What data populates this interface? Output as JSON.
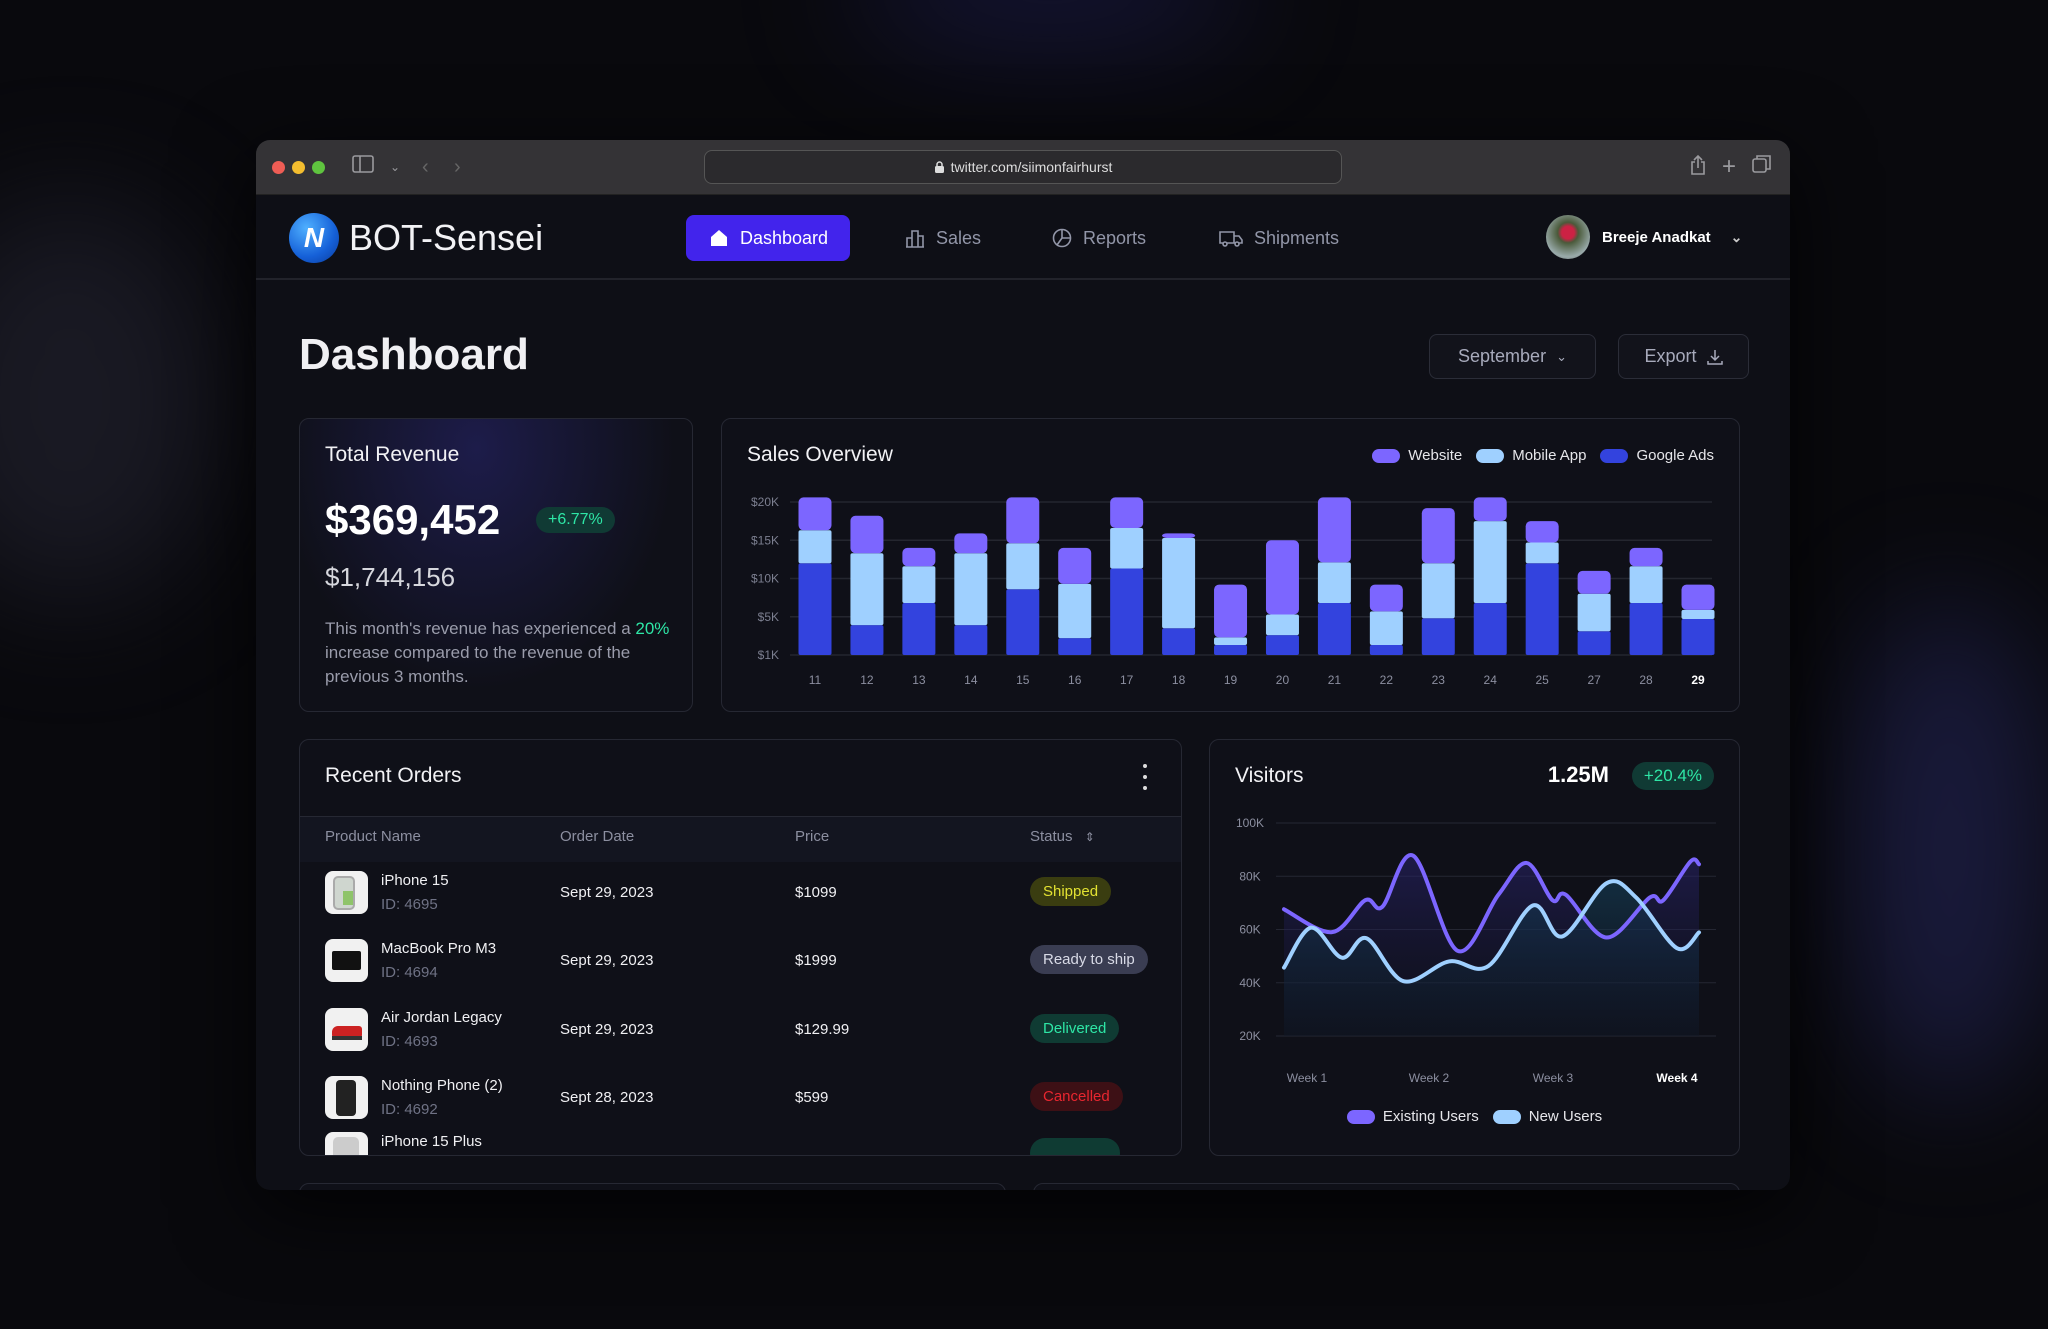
{
  "browser": {
    "url": "twitter.com/siimonfairhurst"
  },
  "app": {
    "brand": "BOT-Sensei",
    "logo_letter": "N"
  },
  "nav": {
    "items": [
      {
        "label": "Dashboard",
        "icon": "home-icon"
      },
      {
        "label": "Sales",
        "icon": "bar-chart-icon"
      },
      {
        "label": "Reports",
        "icon": "pie-chart-icon"
      },
      {
        "label": "Shipments",
        "icon": "truck-icon"
      }
    ],
    "active": "Dashboard"
  },
  "user": {
    "name": "Breeje Anadkat"
  },
  "page": {
    "title": "Dashboard",
    "month_select": "September",
    "export_label": "Export"
  },
  "revenue": {
    "title": "Total Revenue",
    "amount": "$369,452",
    "change": "+6.77%",
    "secondary": "$1,744,156",
    "desc_before": "This month's revenue has experienced a",
    "desc_highlight": "20%",
    "desc_after": " increase compared to the revenue of the previous 3 months."
  },
  "colors": {
    "website": "#7c66ff",
    "mobile_app": "#9fd0ff",
    "google_ads": "#3343de",
    "accent": "#4224ec",
    "positive": "#2ee6a6"
  },
  "chart_data": [
    {
      "type": "bar",
      "stacked": true,
      "title": "Sales Overview",
      "categories": [
        "11",
        "12",
        "13",
        "14",
        "15",
        "16",
        "17",
        "18",
        "19",
        "20",
        "21",
        "22",
        "23",
        "24",
        "25",
        "27",
        "28",
        "29"
      ],
      "highlighted_category": "29",
      "yticks": [
        "$20K",
        "$15K",
        "$10K",
        "$5K",
        "$1K"
      ],
      "ylim": [
        0,
        20
      ],
      "unit": "K$",
      "grid": true,
      "legend": "top-right",
      "series": [
        {
          "name": "Google Ads",
          "values": [
            12,
            3.9,
            6.8,
            3.9,
            8.6,
            2.2,
            11.3,
            3.5,
            1.3,
            2.6,
            6.8,
            1.3,
            4.8,
            6.8,
            12,
            3.1,
            6.8,
            4.7
          ]
        },
        {
          "name": "Mobile App",
          "values": [
            4.3,
            9.4,
            4.8,
            9.4,
            6,
            7.1,
            5.3,
            11.8,
            1,
            2.7,
            5.3,
            4.4,
            7.2,
            10.7,
            2.7,
            4.9,
            4.8,
            1.2
          ]
        },
        {
          "name": "Website",
          "values": [
            4.3,
            4.9,
            2.4,
            2.6,
            6,
            4.7,
            4,
            0.6,
            6.9,
            9.7,
            8.5,
            3.5,
            7.2,
            3.1,
            2.8,
            3,
            2.4,
            3.3
          ]
        }
      ]
    },
    {
      "type": "line",
      "title": "Visitors",
      "total": "1.25M",
      "change": "+20.4%",
      "xticks": [
        "Week 1",
        "Week 2",
        "Week 3",
        "Week 4"
      ],
      "highlighted_tick": "Week 4",
      "yticks": [
        "100K",
        "80K",
        "60K",
        "40K",
        "20K"
      ],
      "ylim": [
        20,
        100
      ],
      "unit": "K",
      "grid": true,
      "legend": "bottom",
      "series": [
        {
          "name": "Existing Users",
          "x": [
            0.82,
            1.21,
            1.48,
            1.62,
            1.87,
            2.23,
            2.56,
            2.79,
            3.0,
            3.11,
            3.44,
            3.79,
            3.9,
            4.12,
            4.19
          ],
          "values": [
            67.6,
            59,
            71,
            68.6,
            87.7,
            52,
            73,
            85,
            71,
            73,
            57,
            72,
            71,
            85.5,
            84.5
          ]
        },
        {
          "name": "New Users",
          "x": [
            0.82,
            1.04,
            1.29,
            1.49,
            1.79,
            2.16,
            2.48,
            2.84,
            3.08,
            3.44,
            3.68,
            4.01,
            4.19
          ],
          "values": [
            45.7,
            60.7,
            49.4,
            56.7,
            40.6,
            48,
            46.3,
            69,
            57.4,
            77.4,
            72,
            53,
            58.9
          ]
        }
      ]
    }
  ],
  "orders": {
    "title": "Recent Orders",
    "columns": [
      "Product Name",
      "Order Date",
      "Price",
      "Status"
    ],
    "rows": [
      {
        "name": "iPhone 15",
        "id": "ID: 4695",
        "date": "Sept 29, 2023",
        "price": "$1099",
        "status": "Shipped"
      },
      {
        "name": "MacBook Pro M3",
        "id": "ID: 4694",
        "date": "Sept 29, 2023",
        "price": "$1999",
        "status": "Ready to ship"
      },
      {
        "name": "Air Jordan Legacy",
        "id": "ID: 4693",
        "date": "Sept 29, 2023",
        "price": "$129.99",
        "status": "Delivered"
      },
      {
        "name": "Nothing Phone (2)",
        "id": "ID: 4692",
        "date": "Sept 28, 2023",
        "price": "$599",
        "status": "Cancelled"
      },
      {
        "name": "iPhone 15 Plus",
        "id": "",
        "date": "",
        "price": "",
        "status": ""
      }
    ]
  }
}
